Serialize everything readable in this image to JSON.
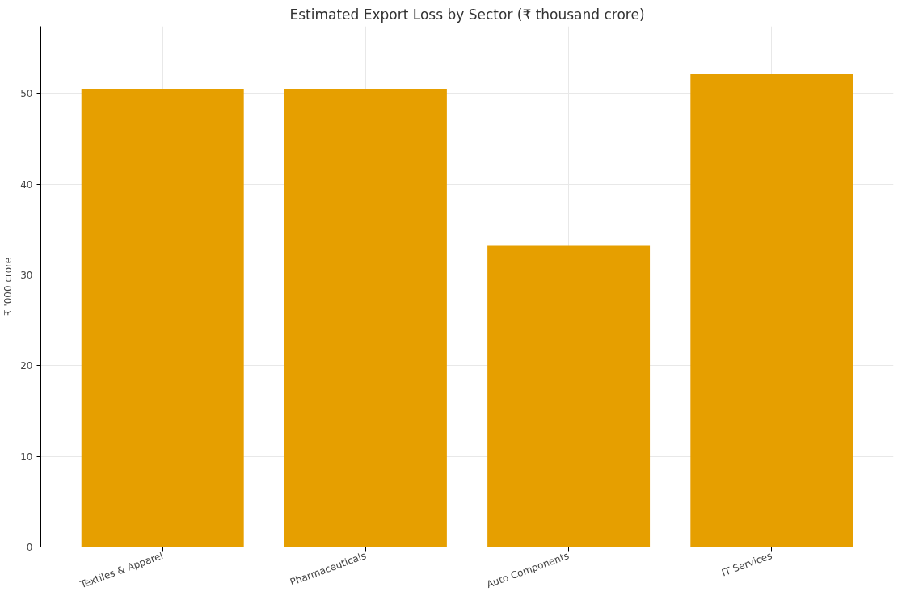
{
  "chart_data": {
    "type": "bar",
    "title": "Estimated Export Loss by Sector (₹ thousand crore)",
    "ylabel": "₹ '000 crore",
    "categories": [
      "Textiles & Apparel",
      "Pharmaceuticals",
      "Auto Components",
      "IT Services"
    ],
    "values": [
      50.5,
      50.5,
      33.2,
      52.1
    ],
    "color": "#e69f00",
    "ylim": [
      0,
      57.4
    ],
    "yticks": [
      0,
      10,
      20,
      30,
      40,
      50
    ],
    "grid": true
  }
}
